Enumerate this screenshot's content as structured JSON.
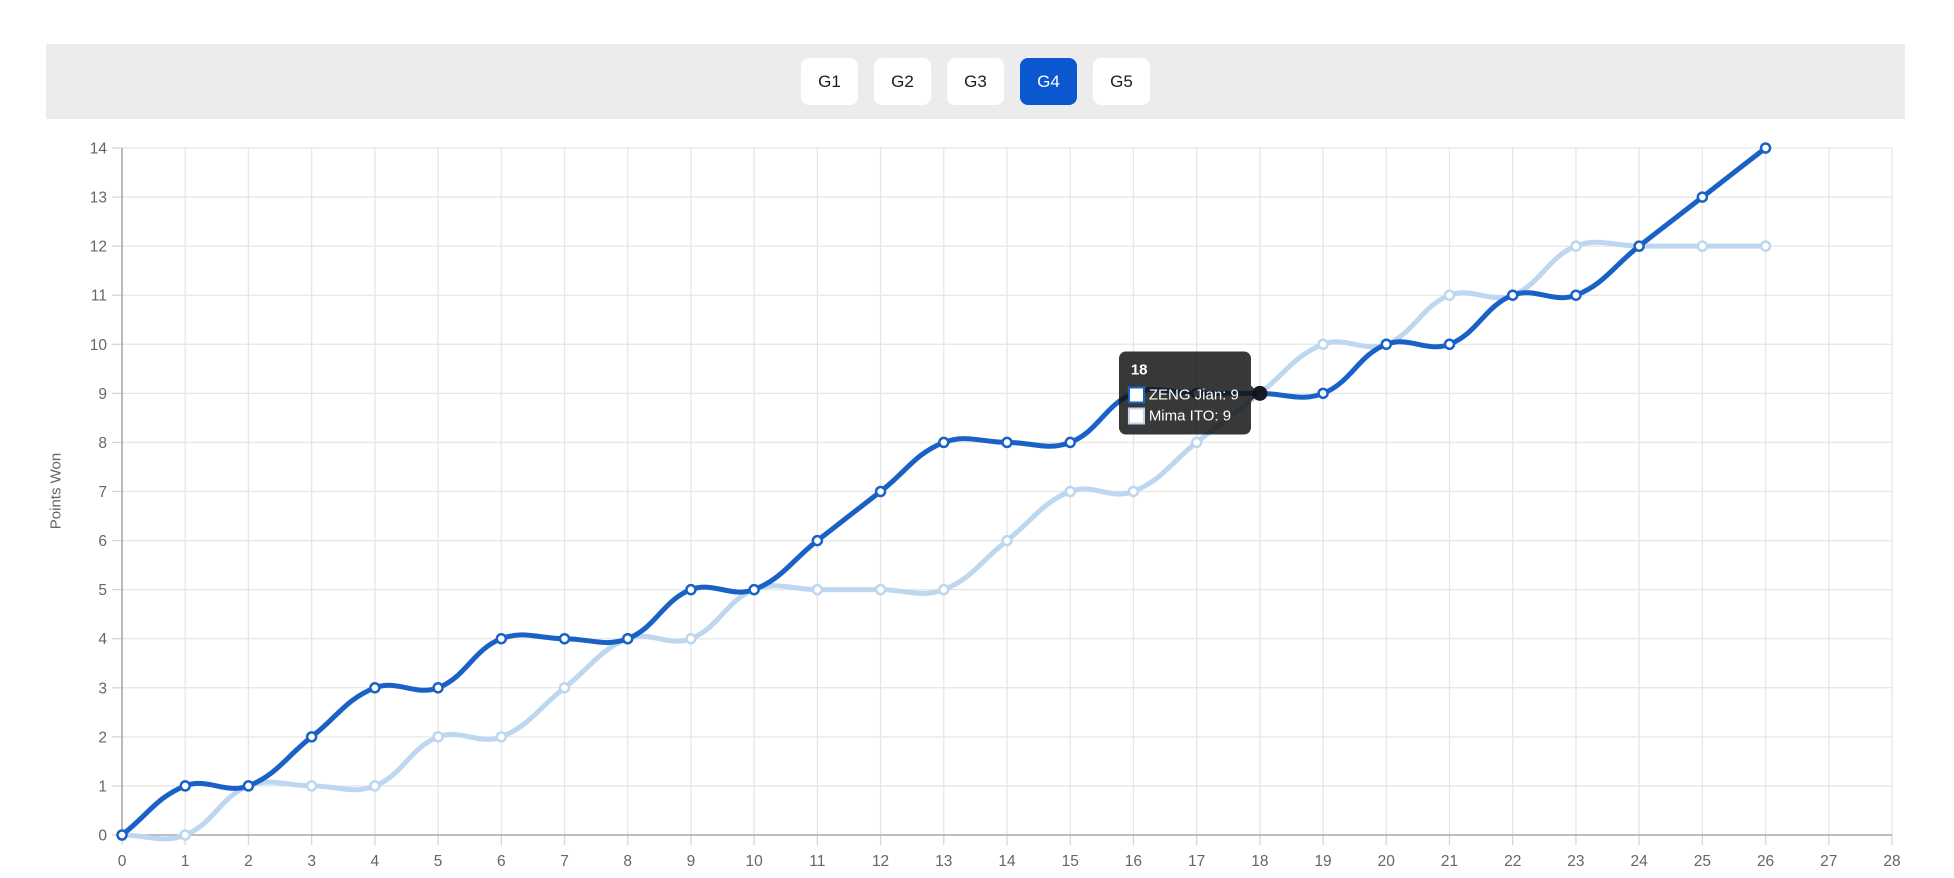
{
  "header": {
    "tabs": [
      {
        "label": "G1",
        "active": false
      },
      {
        "label": "G2",
        "active": false
      },
      {
        "label": "G3",
        "active": false
      },
      {
        "label": "G4",
        "active": true
      },
      {
        "label": "G5",
        "active": false
      }
    ],
    "active_tab_color": "#0b57d0",
    "bar_color": "#ececec"
  },
  "chart_data": {
    "type": "line",
    "title": "",
    "xlabel": "",
    "ylabel": "Points Won",
    "xlim": [
      0,
      28
    ],
    "ylim": [
      0,
      14
    ],
    "grid": true,
    "legend_position": "none",
    "x_ticks": [
      0,
      1,
      2,
      3,
      4,
      5,
      6,
      7,
      8,
      9,
      10,
      11,
      12,
      13,
      14,
      15,
      16,
      17,
      18,
      19,
      20,
      21,
      22,
      23,
      24,
      25,
      26,
      27,
      28
    ],
    "y_ticks": [
      0,
      1,
      2,
      3,
      4,
      5,
      6,
      7,
      8,
      9,
      10,
      11,
      12,
      13,
      14
    ],
    "x": [
      0,
      1,
      2,
      3,
      4,
      5,
      6,
      7,
      8,
      9,
      10,
      11,
      12,
      13,
      14,
      15,
      16,
      17,
      18,
      19,
      20,
      21,
      22,
      23,
      24,
      25,
      26
    ],
    "series": [
      {
        "name": "ZENG Jian",
        "color": "#1a61c7",
        "point_fill": "#ffffff",
        "values": [
          0,
          1,
          1,
          2,
          3,
          3,
          4,
          4,
          4,
          5,
          5,
          6,
          7,
          8,
          8,
          8,
          9,
          9,
          9,
          9,
          10,
          10,
          11,
          11,
          12,
          13,
          14
        ]
      },
      {
        "name": "Mima ITO",
        "color": "#bcd7ef",
        "point_fill": "#ffffff",
        "values": [
          0,
          0,
          1,
          1,
          1,
          2,
          2,
          3,
          4,
          4,
          5,
          5,
          5,
          5,
          6,
          7,
          7,
          8,
          9,
          10,
          10,
          11,
          11,
          12,
          12,
          12,
          12
        ]
      }
    ],
    "tooltip": {
      "title": "18",
      "anchor_x": 18,
      "anchor_y": 9,
      "active_point_color": "#141a24",
      "rows": [
        {
          "label": "ZENG Jian: 9",
          "box_border": "#1a61c7",
          "box_fill": "#ffffff"
        },
        {
          "label": "Mima ITO: 9",
          "box_border": "#bcd7ef",
          "box_fill": "#ffffff"
        }
      ]
    },
    "colors": {
      "grid": "#e6e6e6",
      "axis_border": "#ababab",
      "tick": "#d6d6d6",
      "tick_label": "#666666"
    }
  }
}
